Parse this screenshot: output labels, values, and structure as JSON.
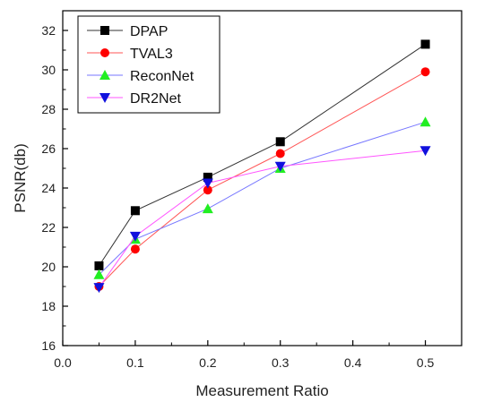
{
  "chart_data": {
    "type": "line",
    "xlabel": "Measurement Ratio",
    "ylabel": "PSNR(db)",
    "xlim": [
      0.0,
      0.55
    ],
    "ylim": [
      16,
      33
    ],
    "x_ticks": [
      0.0,
      0.1,
      0.2,
      0.3,
      0.4,
      0.5
    ],
    "x_tick_labels": [
      "0.0",
      "0.1",
      "0.2",
      "0.3",
      "0.4",
      "0.5"
    ],
    "y_ticks": [
      16,
      18,
      20,
      22,
      24,
      26,
      28,
      30,
      32
    ],
    "y_tick_labels": [
      "16",
      "18",
      "20",
      "22",
      "24",
      "26",
      "28",
      "30",
      "32"
    ],
    "grid": false,
    "legend_position": "top-left",
    "x": [
      0.05,
      0.1,
      0.2,
      0.3,
      0.5
    ],
    "series": [
      {
        "name": "DPAP",
        "values": [
          20.05,
          22.85,
          24.55,
          26.35,
          31.3
        ],
        "line_color": "#333333",
        "marker_color": "#000000",
        "marker": "square"
      },
      {
        "name": "TVAL3",
        "values": [
          19.0,
          20.9,
          23.9,
          25.75,
          29.9
        ],
        "line_color": "#ff5555",
        "marker_color": "#ff0000",
        "marker": "circle"
      },
      {
        "name": "ReconNet",
        "values": [
          19.6,
          21.4,
          22.95,
          25.0,
          27.35
        ],
        "line_color": "#7777ff",
        "marker_color": "#22ee22",
        "marker": "triangle-up"
      },
      {
        "name": "DR2Net",
        "values": [
          18.95,
          21.55,
          24.25,
          25.1,
          25.9
        ],
        "line_color": "#ff55ff",
        "marker_color": "#1111dd",
        "marker": "triangle-down"
      }
    ]
  }
}
